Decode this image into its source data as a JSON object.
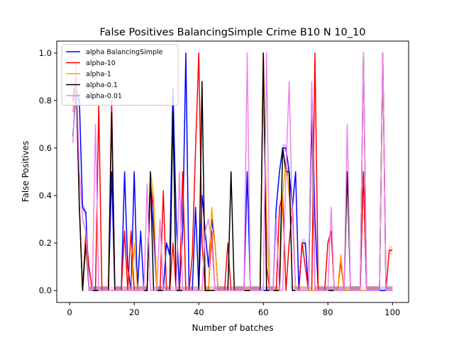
{
  "chart_data": {
    "type": "line",
    "title": "False Positives BalancingSimple Crime B10 N 10_10",
    "xlabel": "Number of batches",
    "ylabel": "False Positives",
    "xlim": [
      -4,
      105
    ],
    "ylim": [
      -0.05,
      1.05
    ],
    "xticks": [
      0,
      20,
      40,
      60,
      80,
      100
    ],
    "yticks": [
      0.0,
      0.2,
      0.4,
      0.6,
      0.8,
      1.0
    ],
    "xtick_labels": [
      "0",
      "20",
      "40",
      "60",
      "80",
      "100"
    ],
    "ytick_labels": [
      "0.0",
      "0.2",
      "0.4",
      "0.6",
      "0.8",
      "1.0"
    ],
    "legend_position": "upper-left",
    "grid": false,
    "series": [
      {
        "name": "alpha BalancingSimple",
        "color": "#0000ff",
        "x": [
          1,
          2,
          3,
          4,
          5,
          6,
          7,
          8,
          9,
          10,
          11,
          12,
          13,
          14,
          15,
          16,
          17,
          18,
          19,
          20,
          21,
          22,
          23,
          24,
          25,
          26,
          27,
          28,
          29,
          30,
          31,
          32,
          33,
          34,
          35,
          36,
          37,
          38,
          39,
          40,
          41,
          42,
          43,
          44,
          45,
          46,
          47,
          48,
          49,
          50,
          51,
          52,
          53,
          54,
          55,
          56,
          57,
          58,
          59,
          60,
          61,
          62,
          63,
          64,
          65,
          66,
          67,
          68,
          69,
          70,
          71,
          72,
          73,
          74,
          75,
          76,
          77,
          78,
          79,
          80,
          81,
          82,
          83,
          84,
          85,
          86,
          87,
          88,
          89,
          90,
          91,
          92,
          93,
          94,
          95,
          96,
          97,
          98,
          99,
          100
        ],
        "y": [
          0.65,
          0.85,
          0.8,
          0.35,
          0.33,
          0.0,
          0.0,
          0.0,
          0.0,
          0.0,
          0.0,
          0.0,
          0.5,
          0.0,
          0.0,
          0.0,
          0.5,
          0.1,
          0.0,
          0.5,
          0.0,
          0.25,
          0.0,
          0.0,
          0.45,
          0.25,
          0.0,
          0.0,
          0.0,
          0.2,
          0.15,
          0.85,
          0.3,
          0.0,
          0.25,
          1.0,
          0.0,
          0.0,
          0.35,
          0.0,
          0.4,
          0.25,
          0.1,
          0.3,
          0.2,
          0.0,
          0.0,
          0.0,
          0.0,
          0.0,
          0.0,
          0.0,
          0.0,
          0.0,
          0.5,
          0.0,
          0.0,
          0.0,
          0.0,
          0.0,
          0.0,
          0.0,
          0.0,
          0.35,
          0.5,
          0.6,
          0.6,
          0.5,
          0.35,
          0.5,
          0.0,
          0.2,
          0.2,
          0.0,
          0.85,
          0.3,
          0.0,
          0.0,
          0.0,
          0.0,
          0.0,
          0.0,
          0.0,
          0.0,
          0.0,
          0.0,
          0.0,
          0.0,
          0.0,
          0.0,
          0.5,
          0.0,
          0.0,
          0.0,
          0.0,
          0.0,
          0.0,
          0.0,
          0.0,
          0.0
        ]
      },
      {
        "name": "alpha-10",
        "color": "#ff0000",
        "x": [
          1,
          2,
          3,
          4,
          5,
          6,
          7,
          8,
          9,
          10,
          11,
          12,
          13,
          14,
          15,
          16,
          17,
          18,
          19,
          20,
          21,
          22,
          23,
          24,
          25,
          26,
          27,
          28,
          29,
          30,
          31,
          32,
          33,
          34,
          35,
          36,
          37,
          38,
          39,
          40,
          41,
          42,
          43,
          44,
          45,
          46,
          47,
          48,
          49,
          50,
          51,
          52,
          53,
          54,
          55,
          56,
          57,
          58,
          59,
          60,
          61,
          62,
          63,
          64,
          65,
          66,
          67,
          68,
          69,
          70,
          71,
          72,
          73,
          74,
          75,
          76,
          77,
          78,
          79,
          80,
          81,
          82,
          83,
          84,
          85,
          86,
          87,
          88,
          89,
          90,
          91,
          92,
          93,
          94,
          95,
          96,
          97,
          98,
          99,
          100
        ],
        "y": [
          0.8,
          0.9,
          0.35,
          0.0,
          0.25,
          0.1,
          0.0,
          0.0,
          0.78,
          0.0,
          0.0,
          0.0,
          0.8,
          0.0,
          0.0,
          0.0,
          0.25,
          0.0,
          0.25,
          0.0,
          0.0,
          0.0,
          0.0,
          0.0,
          0.45,
          0.35,
          0.0,
          0.0,
          0.42,
          0.0,
          0.0,
          0.2,
          0.0,
          0.0,
          0.5,
          0.0,
          0.0,
          0.15,
          0.6,
          1.0,
          0.2,
          0.0,
          0.0,
          0.25,
          0.0,
          0.0,
          0.0,
          0.0,
          0.2,
          0.0,
          0.0,
          0.0,
          0.0,
          0.0,
          0.0,
          0.0,
          0.0,
          0.0,
          0.0,
          1.0,
          0.1,
          0.0,
          0.0,
          0.0,
          0.35,
          0.4,
          0.0,
          0.2,
          0.35,
          0.0,
          0.0,
          0.2,
          0.1,
          0.0,
          0.0,
          1.0,
          0.0,
          0.0,
          0.0,
          0.2,
          0.25,
          0.0,
          0.0,
          0.12,
          0.0,
          0.0,
          0.0,
          0.0,
          0.0,
          0.0,
          0.5,
          0.0,
          0.0,
          0.0,
          0.0,
          0.0,
          1.0,
          0.0,
          0.17,
          0.17
        ]
      },
      {
        "name": "alpha-1",
        "color": "#ffa500",
        "x": [
          1,
          2,
          3,
          4,
          5,
          6,
          7,
          8,
          9,
          10,
          11,
          12,
          13,
          14,
          15,
          16,
          17,
          18,
          19,
          20,
          21,
          22,
          23,
          24,
          25,
          26,
          27,
          28,
          29,
          30,
          31,
          32,
          33,
          34,
          35,
          36,
          37,
          38,
          39,
          40,
          41,
          42,
          43,
          44,
          45,
          46,
          47,
          48,
          49,
          50,
          51,
          52,
          53,
          54,
          55,
          56,
          57,
          58,
          59,
          60,
          61,
          62,
          63,
          64,
          65,
          66,
          67,
          68,
          69,
          70,
          71,
          72,
          73,
          74,
          75,
          76,
          77,
          78,
          79,
          80,
          81,
          82,
          83,
          84,
          85,
          86,
          87,
          88,
          89,
          90,
          91,
          92,
          93,
          94,
          95,
          96,
          97,
          98,
          99,
          100
        ],
        "y": [
          0.75,
          0.95,
          0.35,
          0.0,
          0.2,
          0.0,
          0.0,
          0.0,
          0.0,
          0.0,
          0.0,
          0.0,
          0.0,
          0.0,
          0.0,
          0.0,
          0.0,
          0.0,
          0.0,
          0.2,
          0.0,
          0.0,
          0.0,
          0.0,
          0.5,
          0.4,
          0.0,
          0.0,
          0.0,
          0.0,
          0.0,
          0.0,
          0.0,
          0.0,
          0.0,
          0.0,
          0.0,
          0.0,
          0.0,
          0.0,
          0.0,
          0.0,
          0.0,
          0.35,
          0.2,
          0.0,
          0.0,
          0.0,
          0.0,
          0.0,
          0.0,
          0.0,
          0.0,
          0.0,
          0.0,
          0.0,
          0.0,
          0.0,
          0.0,
          1.0,
          0.3,
          0.0,
          0.0,
          0.0,
          0.0,
          0.4,
          0.55,
          0.4,
          0.3,
          0.0,
          0.0,
          0.0,
          0.0,
          0.0,
          0.0,
          0.0,
          0.0,
          0.0,
          0.0,
          0.0,
          0.0,
          0.0,
          0.0,
          0.15,
          0.0,
          0.0,
          0.0,
          0.0,
          0.0,
          0.0,
          0.0,
          0.0,
          0.0,
          0.0,
          0.0,
          0.0,
          1.0,
          0.0,
          0.0,
          0.0
        ]
      },
      {
        "name": "alpha-0.1",
        "color": "#000000",
        "x": [
          1,
          2,
          3,
          4,
          5,
          6,
          7,
          8,
          9,
          10,
          11,
          12,
          13,
          14,
          15,
          16,
          17,
          18,
          19,
          20,
          21,
          22,
          23,
          24,
          25,
          26,
          27,
          28,
          29,
          30,
          31,
          32,
          33,
          34,
          35,
          36,
          37,
          38,
          39,
          40,
          41,
          42,
          43,
          44,
          45,
          46,
          47,
          48,
          49,
          50,
          51,
          52,
          53,
          54,
          55,
          56,
          57,
          58,
          59,
          60,
          61,
          62,
          63,
          64,
          65,
          66,
          67,
          68,
          69,
          70,
          71,
          72,
          73,
          74,
          75,
          76,
          77,
          78,
          79,
          80,
          81,
          82,
          83,
          84,
          85,
          86,
          87,
          88,
          89,
          90,
          91,
          92,
          93,
          94,
          95,
          96,
          97,
          98,
          99,
          100
        ],
        "y": [
          0.8,
          0.9,
          0.35,
          0.0,
          0.2,
          0.0,
          0.0,
          0.0,
          0.0,
          0.0,
          0.0,
          0.0,
          0.75,
          0.0,
          0.0,
          0.0,
          0.0,
          0.0,
          0.0,
          0.0,
          0.0,
          0.0,
          0.0,
          0.0,
          0.5,
          0.0,
          0.0,
          0.0,
          0.0,
          0.0,
          0.0,
          0.75,
          0.0,
          0.0,
          0.0,
          0.0,
          0.0,
          0.0,
          0.0,
          0.0,
          0.88,
          0.0,
          0.0,
          0.0,
          0.0,
          0.0,
          0.0,
          0.0,
          0.0,
          0.5,
          0.0,
          0.0,
          0.0,
          0.0,
          0.0,
          0.0,
          0.0,
          0.0,
          0.0,
          1.0,
          0.0,
          0.0,
          0.0,
          0.0,
          0.0,
          0.6,
          0.5,
          0.5,
          0.0,
          0.0,
          0.0,
          0.0,
          0.0,
          0.0,
          0.75,
          0.0,
          0.0,
          0.0,
          0.0,
          0.0,
          0.0,
          0.0,
          0.0,
          0.0,
          0.0,
          0.5,
          0.0,
          0.0,
          0.0,
          0.0,
          1.0,
          0.0,
          0.0,
          0.0,
          0.0,
          0.0,
          1.0,
          0.0,
          0.0,
          0.0
        ]
      },
      {
        "name": "alpha-0.01",
        "color": "#ee82ee",
        "x": [
          1,
          2,
          3,
          4,
          5,
          6,
          7,
          8,
          9,
          10,
          11,
          12,
          13,
          14,
          15,
          16,
          17,
          18,
          19,
          20,
          21,
          22,
          23,
          24,
          25,
          26,
          27,
          28,
          29,
          30,
          31,
          32,
          33,
          34,
          35,
          36,
          37,
          38,
          39,
          40,
          41,
          42,
          43,
          44,
          45,
          46,
          47,
          48,
          49,
          50,
          51,
          52,
          53,
          54,
          55,
          56,
          57,
          58,
          59,
          60,
          61,
          62,
          63,
          64,
          65,
          66,
          67,
          68,
          69,
          70,
          71,
          72,
          73,
          74,
          75,
          76,
          77,
          78,
          79,
          80,
          81,
          82,
          83,
          84,
          85,
          86,
          87,
          88,
          89,
          90,
          91,
          92,
          93,
          94,
          95,
          96,
          97,
          98,
          99,
          100
        ],
        "y": [
          0.62,
          0.95,
          0.5,
          0.3,
          0.25,
          0.0,
          0.0,
          0.7,
          0.0,
          0.0,
          0.0,
          0.0,
          0.0,
          0.0,
          0.0,
          0.0,
          0.0,
          0.0,
          0.0,
          0.0,
          0.0,
          0.0,
          0.0,
          0.45,
          0.0,
          0.0,
          0.0,
          0.3,
          0.0,
          0.0,
          0.0,
          0.0,
          0.0,
          0.5,
          0.0,
          0.0,
          0.0,
          0.0,
          0.0,
          0.0,
          0.0,
          0.25,
          0.3,
          0.2,
          0.0,
          0.0,
          0.0,
          0.0,
          0.0,
          0.0,
          0.0,
          0.0,
          0.0,
          0.0,
          1.0,
          0.0,
          0.0,
          0.0,
          0.0,
          0.0,
          1.0,
          0.0,
          0.0,
          0.3,
          0.0,
          0.0,
          0.5,
          0.88,
          0.3,
          0.0,
          0.0,
          0.0,
          0.0,
          0.0,
          0.88,
          0.0,
          0.0,
          0.0,
          0.0,
          0.0,
          0.35,
          0.0,
          0.0,
          0.0,
          0.0,
          0.7,
          0.0,
          0.0,
          0.0,
          0.0,
          1.0,
          0.0,
          0.0,
          0.0,
          0.0,
          0.0,
          1.0,
          0.0,
          0.0,
          0.0
        ]
      }
    ]
  }
}
